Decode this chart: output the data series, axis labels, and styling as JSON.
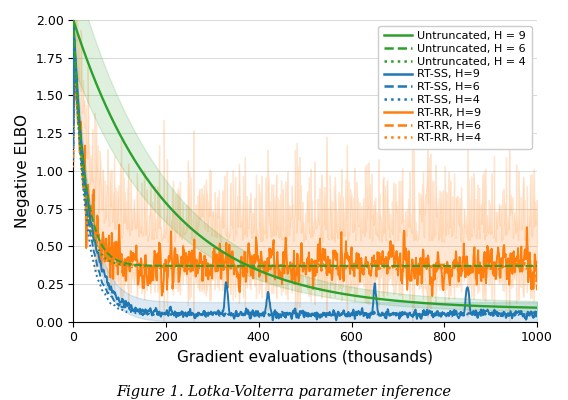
{
  "xlabel": "Gradient evaluations (thousands)",
  "ylabel": "Negative ELBO",
  "caption": "Figure 1. Lotka-Volterra parameter inference",
  "xlim": [
    0,
    1000
  ],
  "ylim": [
    0,
    2.0
  ],
  "yticks": [
    0.0,
    0.25,
    0.5,
    0.75,
    1.0,
    1.25,
    1.5,
    1.75,
    2.0
  ],
  "xticks": [
    0,
    200,
    400,
    600,
    800,
    1000
  ],
  "color_green": "#2ca02c",
  "color_blue": "#1f77b4",
  "color_orange": "#ff7f0e",
  "n_points": 1001,
  "seed": 42,
  "legend_fontsize": 8.0,
  "axis_label_fontsize": 11,
  "caption_fontsize": 10.5
}
